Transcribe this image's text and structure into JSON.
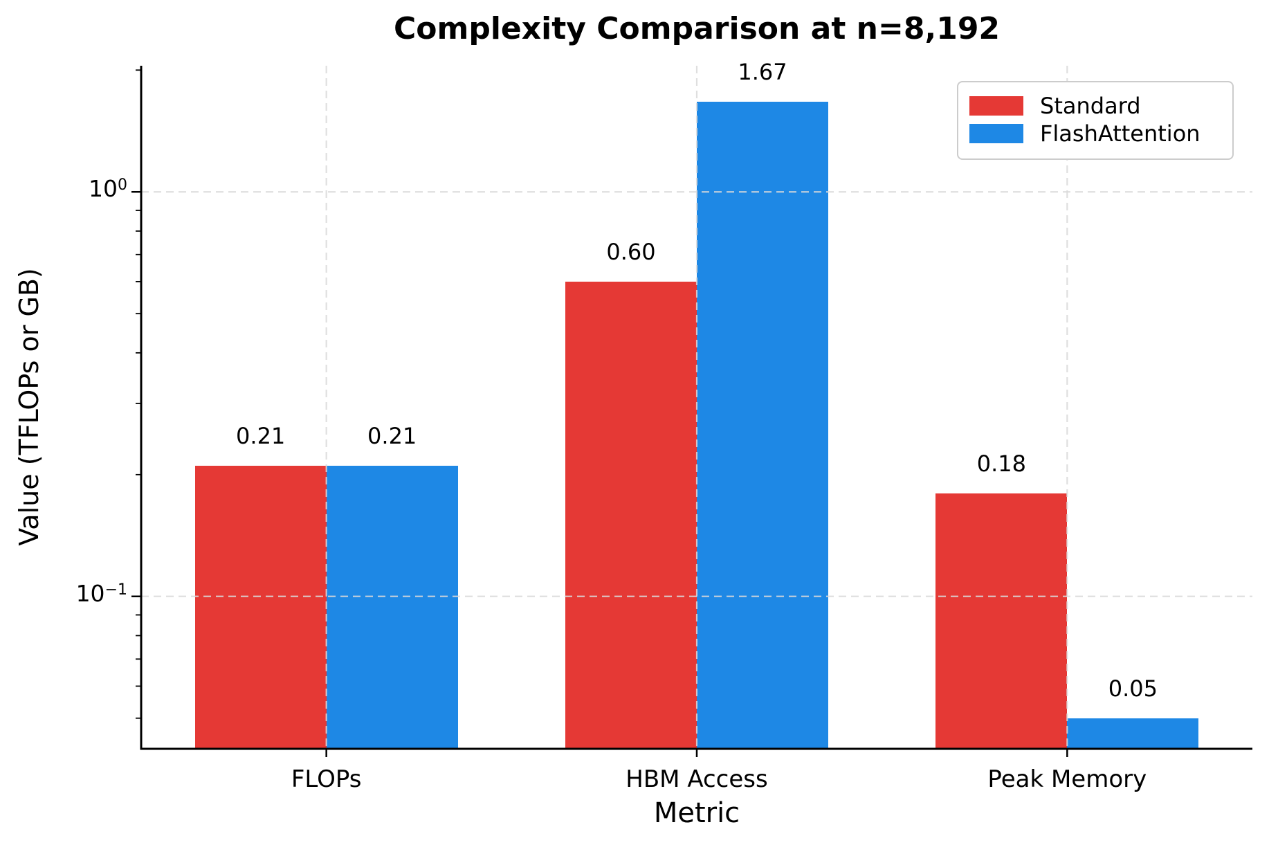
{
  "chart_data": {
    "type": "bar",
    "title": "Complexity Comparison at n=8,192",
    "xlabel": "Metric",
    "ylabel": "Value (TFLOPs or GB)",
    "categories": [
      "FLOPs",
      "HBM Access",
      "Peak Memory"
    ],
    "series": [
      {
        "name": "Standard",
        "color": "#e53935",
        "values": [
          0.21,
          0.6,
          0.18
        ],
        "value_labels": [
          "0.21",
          "0.60",
          "0.18"
        ]
      },
      {
        "name": "FlashAttention",
        "color": "#1e88e5",
        "values": [
          0.21,
          1.67,
          0.05
        ],
        "value_labels": [
          "0.21",
          "1.67",
          "0.05"
        ]
      }
    ],
    "yscale": "log",
    "ylim": [
      0.042,
      2.05
    ],
    "yticks": [
      {
        "value": 1,
        "base": "10",
        "exponent": "0"
      },
      {
        "value": 0.1,
        "base": "10",
        "exponent": "−1"
      }
    ],
    "minor_yticks": [
      0.05,
      0.06,
      0.07,
      0.08,
      0.09,
      0.2,
      0.3,
      0.4,
      0.5,
      0.6,
      0.7,
      0.8,
      0.9,
      2.0
    ],
    "grid": {
      "style": "dashed",
      "color": "#d9d9d9"
    },
    "legend": {
      "position": "upper right",
      "border_color": "#cccccc"
    }
  },
  "colors": {
    "background": "#ffffff",
    "text": "#000000",
    "spine": "#000000"
  }
}
